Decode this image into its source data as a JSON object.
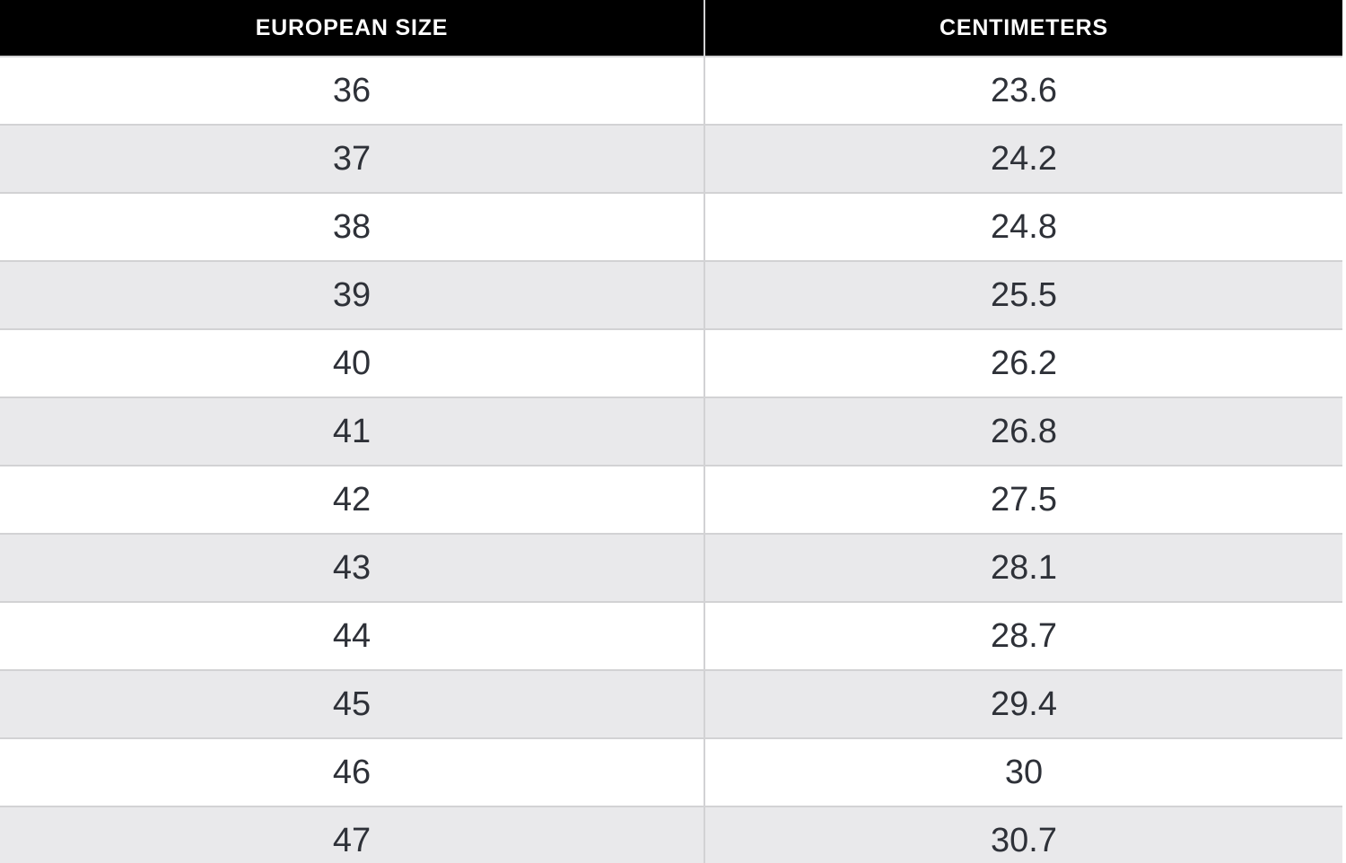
{
  "table": {
    "headers": [
      "EUROPEAN SIZE",
      "CENTIMETERS"
    ],
    "rows": [
      [
        "36",
        "23.6"
      ],
      [
        "37",
        "24.2"
      ],
      [
        "38",
        "24.8"
      ],
      [
        "39",
        "25.5"
      ],
      [
        "40",
        "26.2"
      ],
      [
        "41",
        "26.8"
      ],
      [
        "42",
        "27.5"
      ],
      [
        "43",
        "28.1"
      ],
      [
        "44",
        "28.7"
      ],
      [
        "45",
        "29.4"
      ],
      [
        "46",
        "30"
      ],
      [
        "47",
        "30.7"
      ]
    ]
  },
  "chart_data": {
    "type": "table",
    "columns": [
      "EUROPEAN SIZE",
      "CENTIMETERS"
    ],
    "rows": [
      [
        36,
        23.6
      ],
      [
        37,
        24.2
      ],
      [
        38,
        24.8
      ],
      [
        39,
        25.5
      ],
      [
        40,
        26.2
      ],
      [
        41,
        26.8
      ],
      [
        42,
        27.5
      ],
      [
        43,
        28.1
      ],
      [
        44,
        28.7
      ],
      [
        45,
        29.4
      ],
      [
        46,
        30
      ],
      [
        47,
        30.7
      ]
    ],
    "layout": {
      "header_style": "black bar, white bold uppercase text, centered",
      "row_striping": "white / light gray alternating starting with white",
      "grid": "light gray 2px horizontal row borders and single vertical column divider",
      "last_row_cut_off": true
    }
  },
  "colors": {
    "header_bg": "#000000",
    "header_text": "#ffffff",
    "row_bg": "#ffffff",
    "row_alt_bg": "#e9e9eb",
    "border": "#d2d2d4",
    "cell_text": "#2e3138"
  }
}
